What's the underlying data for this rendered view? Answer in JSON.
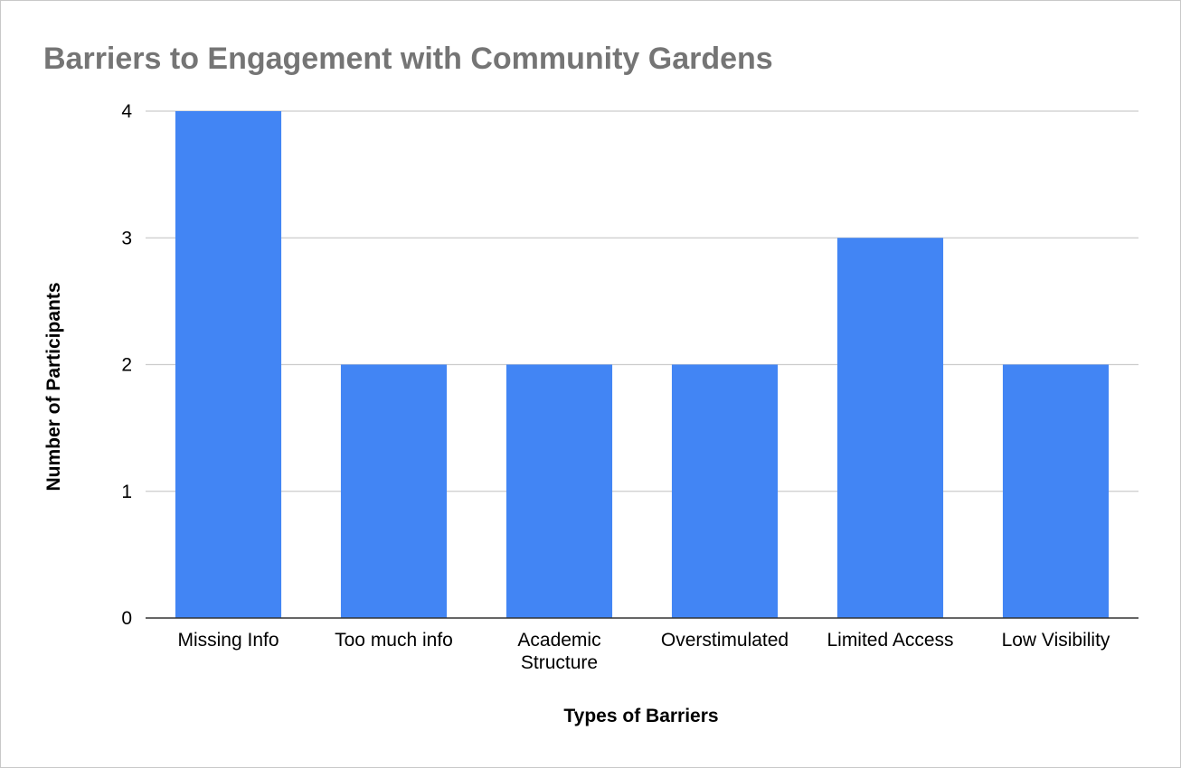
{
  "chart_data": {
    "type": "bar",
    "title": "Barriers to Engagement with Community Gardens",
    "xlabel": "Types of Barriers",
    "ylabel": "Number of Participants",
    "categories": [
      "Missing Info",
      "Too much info",
      "Academic Structure",
      "Overstimulated",
      "Limited Access",
      "Low Visibility"
    ],
    "category_lines": [
      [
        "Missing Info"
      ],
      [
        "Too much info"
      ],
      [
        "Academic",
        "Structure"
      ],
      [
        "Overstimulated"
      ],
      [
        "Limited Access"
      ],
      [
        "Low Visibility"
      ]
    ],
    "values": [
      4,
      2,
      2,
      2,
      3,
      2
    ],
    "ylim": [
      0,
      4
    ],
    "yticks": [
      "0",
      "1",
      "2",
      "3",
      "4"
    ],
    "grid": true,
    "legend": "none",
    "bar_color": "#4285f4",
    "title_color": "#757575"
  }
}
